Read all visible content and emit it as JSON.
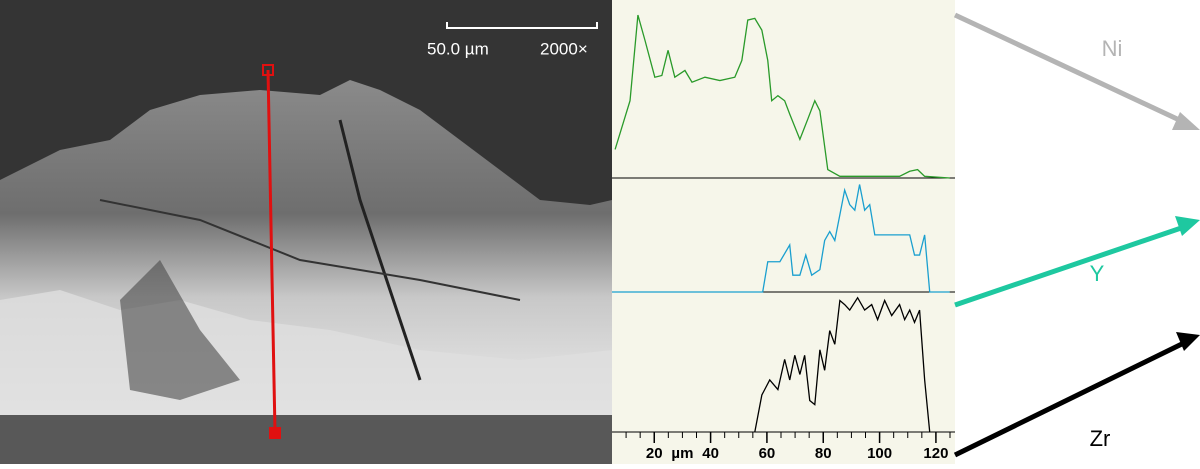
{
  "sem_image": {
    "scale_bar": "50.0 µm",
    "magnification": "2000×"
  },
  "chart_data": [
    {
      "type": "line",
      "xlim": [
        5,
        125
      ],
      "ylim": [
        0,
        100
      ],
      "x": [
        6.1,
        11.4,
        14.2,
        16.7,
        20.2,
        22.7,
        24.9,
        27.3,
        30.9,
        33.4,
        38.0,
        43.3,
        48.6,
        51.1,
        53.2,
        55.7,
        58.2,
        60.3,
        61.7,
        63.9,
        66.3,
        68.1,
        71.7,
        74.5,
        77.0,
        78.8,
        81.6,
        85.9,
        107.1,
        110.7,
        113.5,
        116.0,
        124.9
      ],
      "series": [
        {
          "name": "Ni",
          "color": "#2a9a2a",
          "values": [
            17,
            46,
            97,
            82,
            60,
            61,
            76,
            60,
            64,
            57,
            60,
            58,
            60,
            70,
            94,
            95,
            88,
            70,
            46,
            49,
            46,
            38,
            23,
            35,
            46,
            40,
            5,
            1,
            1,
            4,
            5,
            1,
            0
          ]
        }
      ]
    },
    {
      "type": "line",
      "xlim": [
        5,
        125
      ],
      "ylim": [
        0,
        100
      ],
      "x": [
        5,
        58.5,
        60.3,
        64.6,
        68.1,
        69.2,
        71.7,
        73.8,
        75.9,
        78.8,
        80.5,
        82.3,
        84.1,
        85.9,
        87.6,
        89.4,
        91.2,
        92.9,
        94.7,
        96.5,
        98.3,
        101.8,
        105.4,
        108.9,
        110.7,
        112.4,
        114.2,
        116.0,
        117.8,
        124.9
      ],
      "series": [
        {
          "name": "Y",
          "color": "#1a9fcf",
          "values": [
            0,
            0,
            27,
            27,
            42,
            15,
            15,
            33,
            15,
            20,
            46,
            54,
            46,
            69,
            91,
            78,
            73,
            96,
            73,
            78,
            51,
            51,
            51,
            51,
            51,
            33,
            33,
            51,
            0,
            0
          ]
        }
      ]
    },
    {
      "type": "line",
      "xlim": [
        5,
        125
      ],
      "ylim": [
        0,
        100
      ],
      "x": [
        55.7,
        58.2,
        61.0,
        63.9,
        66.3,
        68.1,
        69.9,
        71.7,
        73.4,
        75.2,
        77.0,
        78.8,
        80.5,
        82.3,
        84.1,
        85.9,
        87.6,
        89.4,
        92.2,
        94.7,
        97.2,
        99.3,
        101.8,
        104.3,
        107.1,
        108.9,
        110.7,
        112.4,
        114.2,
        116.0,
        117.8
      ],
      "series": [
        {
          "name": "Zr",
          "color": "#000000",
          "values": [
            0,
            27,
            38,
            31,
            53,
            38,
            56,
            42,
            56,
            23,
            20,
            60,
            45,
            74,
            64,
            96,
            93,
            89,
            98,
            89,
            93,
            82,
            96,
            85,
            93,
            82,
            89,
            80,
            89,
            38,
            0
          ]
        }
      ],
      "xticks": [
        20,
        40,
        60,
        80,
        100,
        120
      ],
      "xlabel": "µm"
    }
  ]
}
